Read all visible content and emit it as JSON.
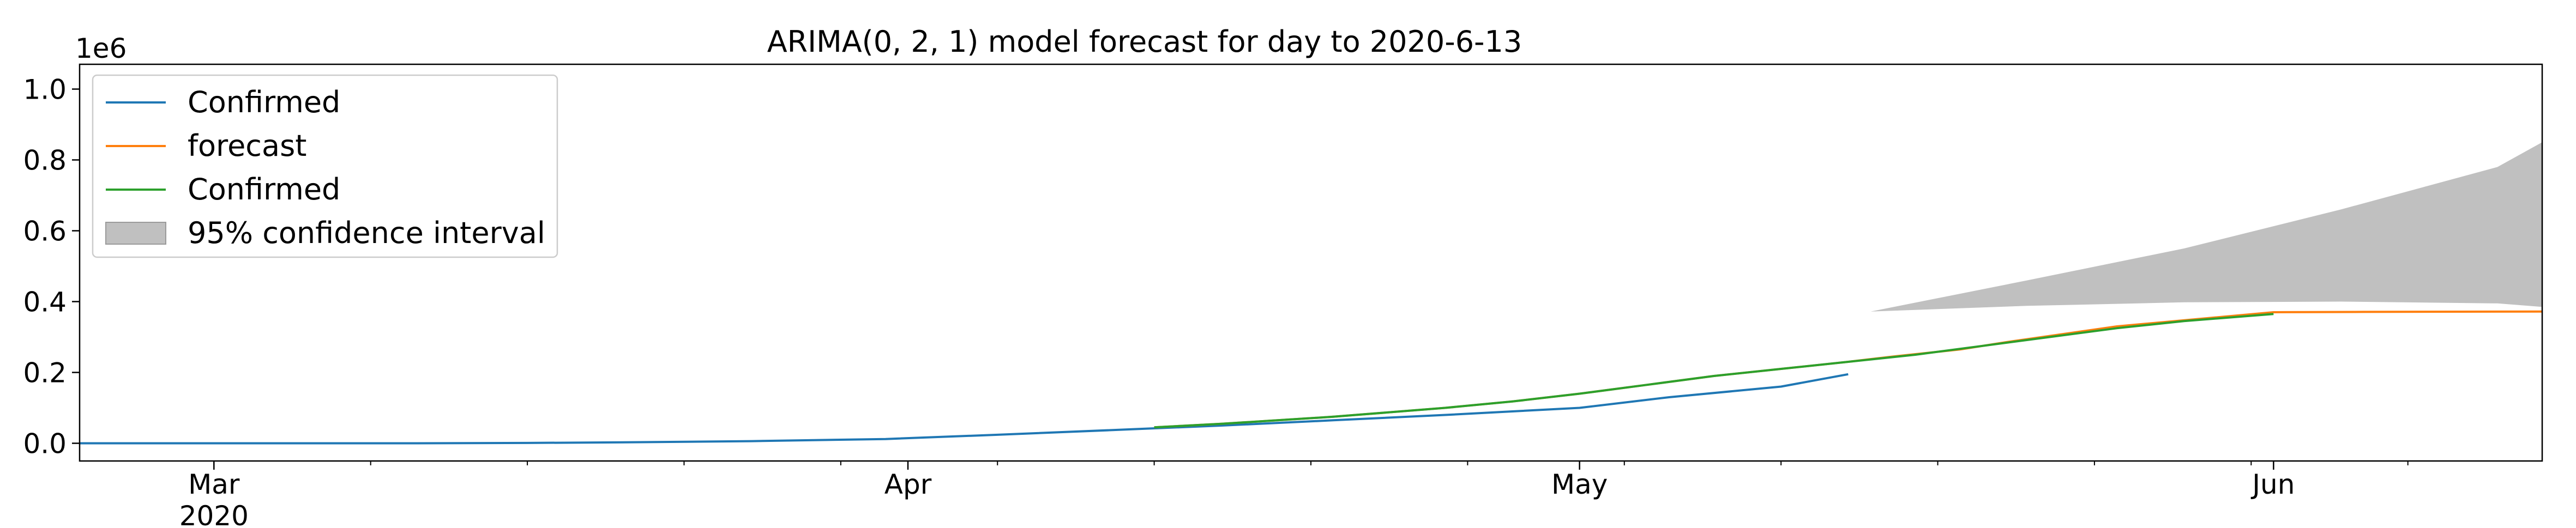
{
  "chart_data": {
    "type": "line",
    "title": "ARIMA(0, 2, 1) model forecast for day to 2020-6-13",
    "xlabel": "",
    "ylabel": "",
    "y_offset_label": "1e6",
    "x_type": "date",
    "xlim": [
      "2020-02-24",
      "2020-06-13"
    ],
    "ylim": [
      -0.05,
      1.07
    ],
    "yticks": [
      0.0,
      0.2,
      0.4,
      0.6,
      0.8,
      1.0
    ],
    "ytick_labels": [
      "0.0",
      "0.2",
      "0.4",
      "0.6",
      "0.8",
      "1.0"
    ],
    "xticks": [
      {
        "date": "2020-03-01",
        "label": "Mar",
        "sublabel": "2020"
      },
      {
        "date": "2020-04-01",
        "label": "Apr",
        "sublabel": ""
      },
      {
        "date": "2020-05-01",
        "label": "May",
        "sublabel": ""
      },
      {
        "date": "2020-06-01",
        "label": "Jun",
        "sublabel": ""
      }
    ],
    "grid": false,
    "legend_position": "upper-left",
    "series": [
      {
        "name": "Confirmed",
        "color": "#1f77b4",
        "x": [
          "2020-02-24",
          "2020-03-01",
          "2020-03-05",
          "2020-03-10",
          "2020-03-15",
          "2020-03-20",
          "2020-03-25",
          "2020-03-31",
          "2020-04-05",
          "2020-04-10",
          "2020-04-15",
          "2020-04-20",
          "2020-04-25",
          "2020-05-01",
          "2020-05-05",
          "2020-05-10",
          "2020-05-13"
        ],
        "y": [
          0.0,
          0.0,
          0.0,
          0.0,
          0.001,
          0.003,
          0.006,
          0.012,
          0.024,
          0.037,
          0.05,
          0.065,
          0.08,
          0.1,
          0.13,
          0.16,
          0.195
        ]
      },
      {
        "name": "forecast",
        "color": "#ff7f0e",
        "x": [
          "2020-04-12",
          "2020-04-15",
          "2020-04-20",
          "2020-04-25",
          "2020-04-28",
          "2020-05-01",
          "2020-05-04",
          "2020-05-07",
          "2020-05-10",
          "2020-05-13",
          "2020-05-15",
          "2020-05-18",
          "2020-05-20",
          "2020-05-25",
          "2020-06-01",
          "2020-06-05",
          "2020-06-13"
        ],
        "y": [
          0.045,
          0.055,
          0.075,
          0.1,
          0.118,
          0.14,
          0.165,
          0.19,
          0.21,
          0.23,
          0.245,
          0.265,
          0.285,
          0.33,
          0.37,
          0.371,
          0.372
        ]
      },
      {
        "name": "Confirmed",
        "color": "#2ca02c",
        "x": [
          "2020-04-12",
          "2020-04-15",
          "2020-04-20",
          "2020-04-25",
          "2020-04-28",
          "2020-05-01",
          "2020-05-04",
          "2020-05-07",
          "2020-05-10",
          "2020-05-13",
          "2020-05-16",
          "2020-05-19",
          "2020-05-22",
          "2020-05-25",
          "2020-05-28",
          "2020-05-31",
          "2020-06-01"
        ],
        "y": [
          0.045,
          0.055,
          0.075,
          0.1,
          0.118,
          0.14,
          0.165,
          0.19,
          0.21,
          0.23,
          0.25,
          0.275,
          0.3,
          0.325,
          0.345,
          0.36,
          0.365
        ]
      }
    ],
    "confidence_interval": {
      "name": "95% confidence interval",
      "color": "#c0c0c0",
      "x": [
        "2020-05-14",
        "2020-05-21",
        "2020-05-28",
        "2020-06-04",
        "2020-06-11",
        "2020-06-13"
      ],
      "lower": [
        0.372,
        0.388,
        0.398,
        0.4,
        0.395,
        0.385
      ],
      "upper": [
        0.372,
        0.46,
        0.55,
        0.66,
        0.78,
        0.85
      ]
    }
  }
}
